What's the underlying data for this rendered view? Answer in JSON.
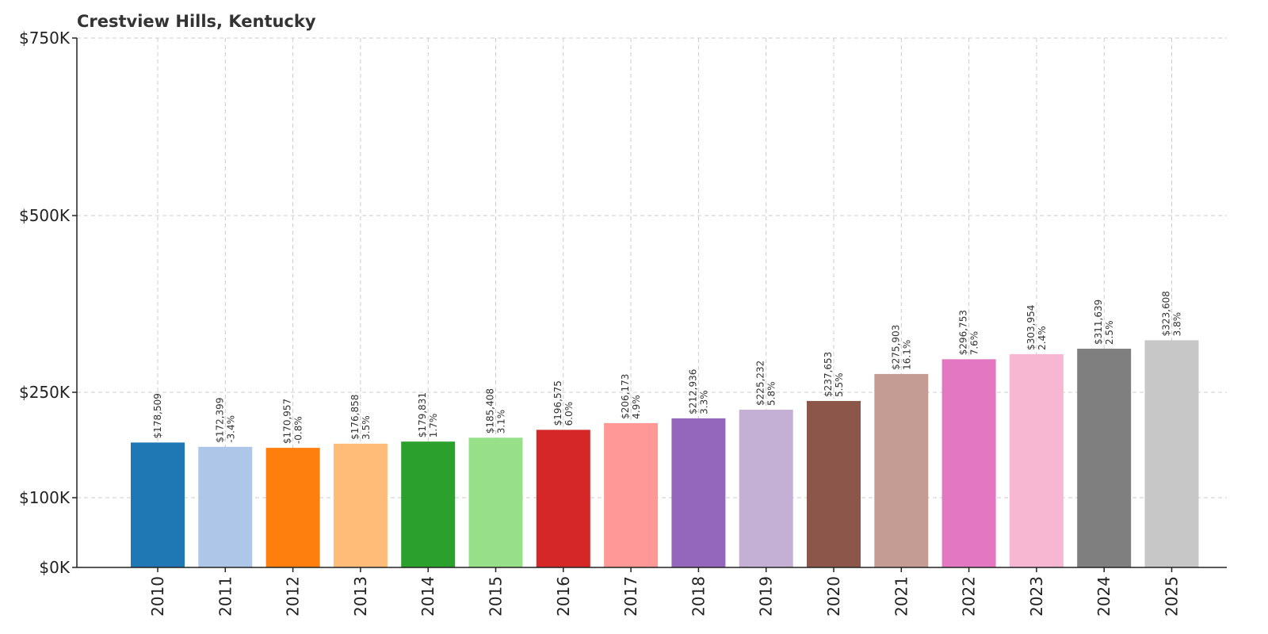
{
  "chart_data": {
    "type": "bar",
    "title": "Crestview Hills, Kentucky",
    "xlabel": "",
    "ylabel": "",
    "y_scale": "piecewise-linear",
    "ylim": [
      0,
      750000
    ],
    "y_ticks": [
      {
        "value": 0,
        "label": "$0K"
      },
      {
        "value": 100000,
        "label": "$100K"
      },
      {
        "value": 250000,
        "label": "$250K"
      },
      {
        "value": 500000,
        "label": "$500K"
      },
      {
        "value": 750000,
        "label": "$750K"
      }
    ],
    "grid": true,
    "categories": [
      "2010",
      "2011",
      "2012",
      "2013",
      "2014",
      "2015",
      "2016",
      "2017",
      "2018",
      "2019",
      "2020",
      "2021",
      "2022",
      "2023",
      "2024",
      "2025"
    ],
    "values": [
      178509,
      172399,
      170957,
      176858,
      179831,
      185408,
      196575,
      206173,
      212936,
      225232,
      237653,
      275903,
      296753,
      303954,
      311639,
      323608
    ],
    "value_labels": [
      "$178,509",
      "$172,399",
      "$170,957",
      "$176,858",
      "$179,831",
      "$185,408",
      "$196,575",
      "$206,173",
      "$212,936",
      "$225,232",
      "$237,653",
      "$275,903",
      "$296,753",
      "$303,954",
      "$311,639",
      "$323,608"
    ],
    "change_labels": [
      "",
      "-3.4%",
      "-0.8%",
      "3.5%",
      "1.7%",
      "3.1%",
      "6.0%",
      "4.9%",
      "3.3%",
      "5.8%",
      "5.5%",
      "16.1%",
      "7.6%",
      "2.4%",
      "2.5%",
      "3.8%"
    ],
    "colors": [
      "#1f77b4",
      "#aec7e8",
      "#ff7f0e",
      "#ffbb78",
      "#2ca02c",
      "#98df8a",
      "#d62728",
      "#ff9896",
      "#9467bd",
      "#c5b0d5",
      "#8c564b",
      "#c49c94",
      "#e377c2",
      "#f7b6d2",
      "#7f7f7f",
      "#c7c7c7"
    ]
  }
}
